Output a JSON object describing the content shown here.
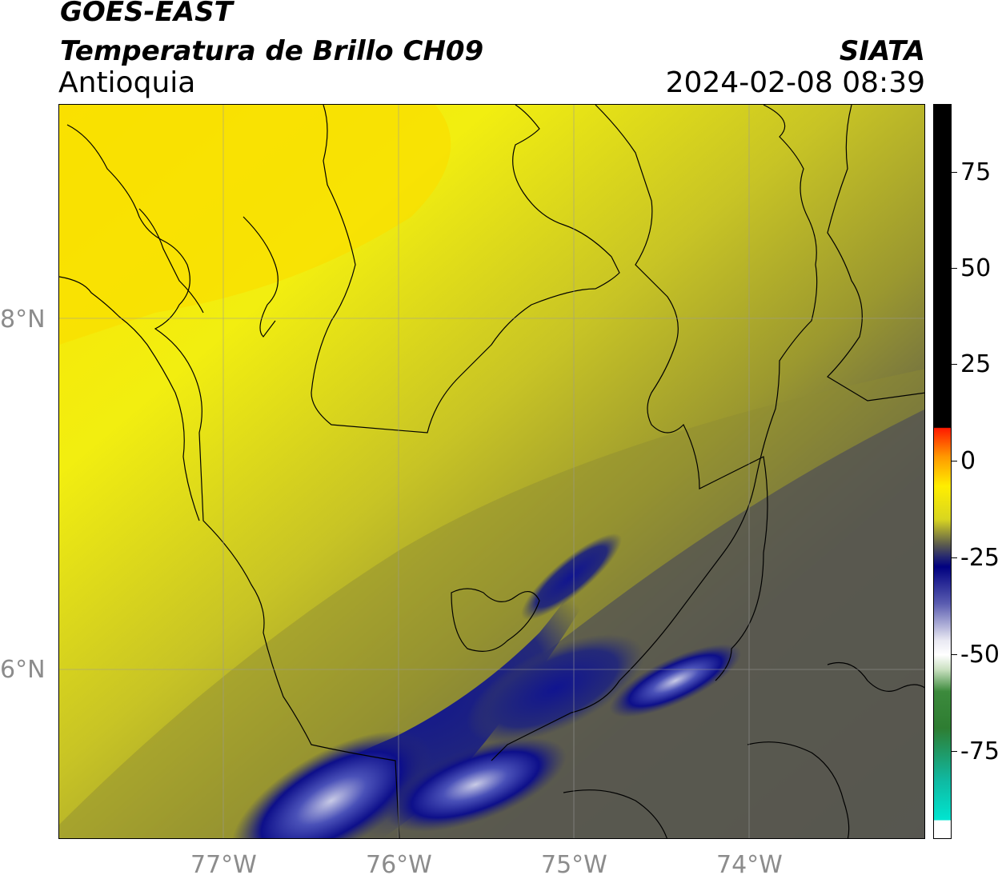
{
  "header": {
    "satellite": "GOES-EAST",
    "product": "Temperatura de Brillo CH09",
    "region": "Antioquia",
    "agency": "SIATA",
    "timestamp": "2024-02-08 08:39"
  },
  "map": {
    "lat_labels": [
      "8°N",
      "6°N"
    ],
    "lon_labels": [
      "77°W",
      "76°W",
      "75°W",
      "74°W"
    ],
    "colors": {
      "yellow": "#f7ef06",
      "olive": "#b5b328",
      "gray": "#5a5a4e",
      "navy": "#0d0f8a",
      "grid": "#9a9a9a"
    }
  },
  "colorbar": {
    "tick_labels": [
      "75",
      "50",
      "25",
      "0",
      "-25",
      "-50",
      "-75"
    ],
    "colors": [
      "#000000",
      "#ff1a00",
      "#ff9900",
      "#ffee00",
      "#5a5a4e",
      "#000080",
      "#ffffff",
      "#2e7d32",
      "#00e5d0"
    ]
  }
}
